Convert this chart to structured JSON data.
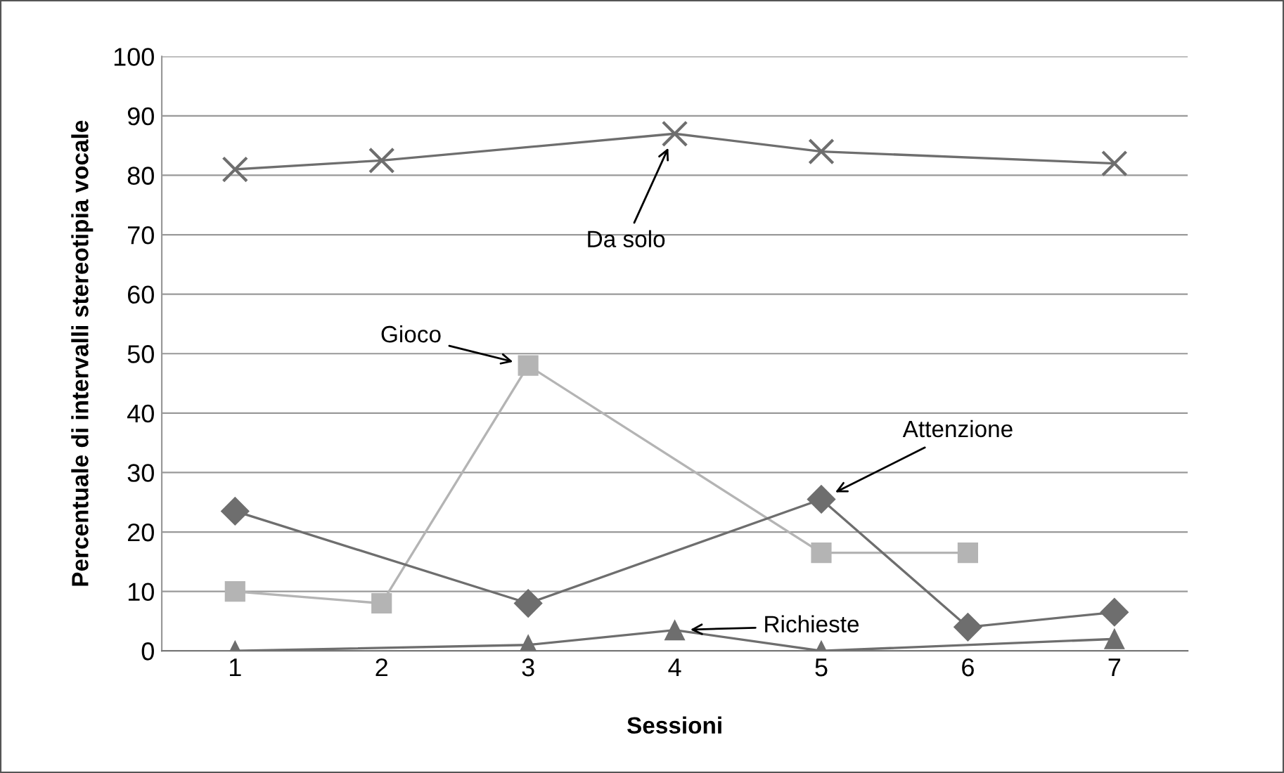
{
  "chart_data": {
    "type": "line",
    "xlabel": "Sessioni",
    "ylabel": "Percentuale di intervalli stereotipia vocale",
    "xlim": [
      0.5,
      7.5
    ],
    "xticks": [
      1,
      2,
      3,
      4,
      5,
      6,
      7
    ],
    "ylim": [
      0,
      100
    ],
    "yticks": [
      0,
      10,
      20,
      30,
      40,
      50,
      60,
      70,
      80,
      90,
      100
    ],
    "grid": "y",
    "legend": false,
    "series": [
      {
        "name": "Da solo",
        "color": "#6e6e6e",
        "marker": "cross",
        "x": [
          1,
          2,
          4,
          5,
          7
        ],
        "values": [
          81,
          82.5,
          87,
          84,
          82
        ]
      },
      {
        "name": "Gioco",
        "color": "#b4b4b4",
        "marker": "square",
        "x": [
          1,
          2,
          3,
          5,
          6
        ],
        "values": [
          10,
          8,
          48,
          16.5,
          16.5
        ]
      },
      {
        "name": "Attenzione",
        "color": "#6e6e6e",
        "marker": "diamond",
        "x": [
          1,
          3,
          5,
          6,
          7
        ],
        "values": [
          23.5,
          8,
          25.5,
          4,
          6.5
        ]
      },
      {
        "name": "Richieste",
        "color": "#6e6e6e",
        "marker": "triangle",
        "x": [
          1,
          3,
          4,
          5,
          7
        ],
        "values": [
          0,
          1,
          3.5,
          0,
          2
        ]
      }
    ]
  }
}
